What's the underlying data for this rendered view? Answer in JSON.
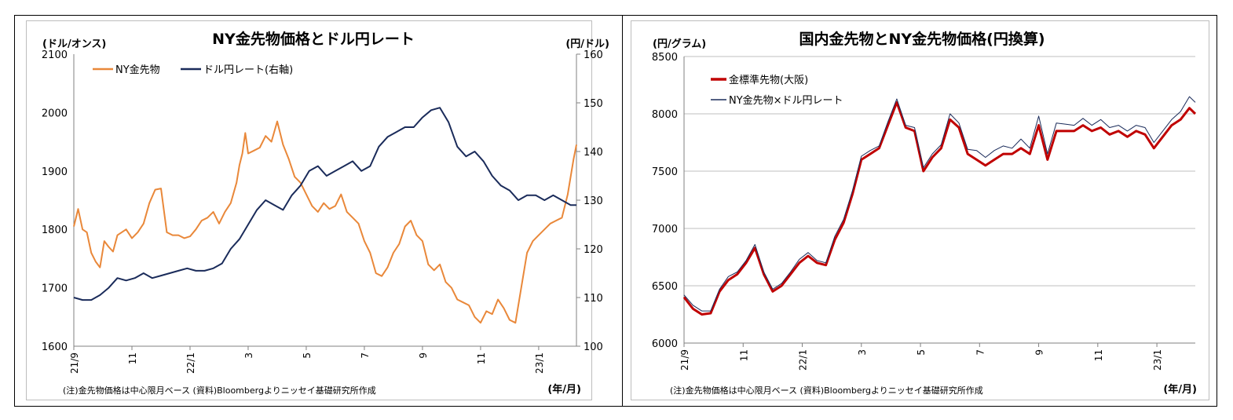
{
  "chart_data": [
    {
      "type": "line",
      "title": "NY金先物価格とドル円レート",
      "y_left_label": "(ドル/オンス)",
      "y_right_label": "(円/ドル)",
      "x_label": "(年/月)",
      "note": "(注)金先物価格は中心限月ベース (資料)Bloombergよりニッセイ基礎研究所作成",
      "x_ticks": [
        "21/9",
        "11",
        "22/1",
        "3",
        "5",
        "7",
        "9",
        "11",
        "23/1"
      ],
      "x_range": [
        0,
        17.3
      ],
      "ylim_left": [
        1600,
        2100
      ],
      "y_left_ticks": [
        "1600",
        "1700",
        "1800",
        "1900",
        "2000",
        "2100"
      ],
      "ylim_right": [
        100,
        160
      ],
      "y_right_ticks": [
        "100",
        "110",
        "120",
        "130",
        "140",
        "150",
        "160"
      ],
      "legend_position": "top-left",
      "series": [
        {
          "name": "NY金先物",
          "axis": "left",
          "color": "#E9883A",
          "x": [
            0,
            0.15,
            0.3,
            0.45,
            0.6,
            0.75,
            0.9,
            1.05,
            1.2,
            1.35,
            1.5,
            1.65,
            1.8,
            2.0,
            2.2,
            2.4,
            2.6,
            2.8,
            3.0,
            3.2,
            3.4,
            3.6,
            3.8,
            4.0,
            4.2,
            4.4,
            4.6,
            4.8,
            5.0,
            5.2,
            5.4,
            5.6,
            5.7,
            5.8,
            5.9,
            6.0,
            6.2,
            6.4,
            6.6,
            6.8,
            7.0,
            7.2,
            7.4,
            7.6,
            7.8,
            8.0,
            8.2,
            8.4,
            8.6,
            8.8,
            9.0,
            9.2,
            9.4,
            9.6,
            9.8,
            10.0,
            10.2,
            10.4,
            10.6,
            10.8,
            11.0,
            11.2,
            11.4,
            11.6,
            11.8,
            12.0,
            12.2,
            12.4,
            12.6,
            12.8,
            13.0,
            13.2,
            13.4,
            13.6,
            13.8,
            14.0,
            14.2,
            14.4,
            14.6,
            14.8,
            15.0,
            15.2,
            15.4,
            15.6,
            15.8,
            16.0,
            16.2,
            16.4,
            16.6,
            16.8,
            17.0,
            17.2,
            17.3
          ],
          "values": [
            1805,
            1835,
            1800,
            1795,
            1760,
            1745,
            1735,
            1780,
            1770,
            1762,
            1790,
            1795,
            1800,
            1785,
            1795,
            1810,
            1845,
            1868,
            1870,
            1795,
            1790,
            1790,
            1785,
            1788,
            1800,
            1815,
            1820,
            1830,
            1810,
            1830,
            1845,
            1880,
            1910,
            1930,
            1965,
            1930,
            1935,
            1940,
            1960,
            1950,
            1985,
            1945,
            1920,
            1890,
            1880,
            1860,
            1840,
            1830,
            1845,
            1835,
            1840,
            1860,
            1830,
            1820,
            1810,
            1780,
            1760,
            1725,
            1720,
            1735,
            1760,
            1775,
            1805,
            1815,
            1790,
            1780,
            1740,
            1730,
            1740,
            1710,
            1700,
            1680,
            1675,
            1670,
            1650,
            1640,
            1660,
            1655,
            1680,
            1665,
            1645,
            1640,
            1700,
            1760,
            1780,
            1790,
            1800,
            1810,
            1815,
            1820,
            1860,
            1920,
            1945
          ]
        },
        {
          "name": "ドル円レート(右軸)",
          "axis": "right",
          "color": "#1A2B5A",
          "x": [
            0,
            0.3,
            0.6,
            0.9,
            1.2,
            1.5,
            1.8,
            2.1,
            2.4,
            2.7,
            3.0,
            3.3,
            3.6,
            3.9,
            4.2,
            4.5,
            4.8,
            5.1,
            5.4,
            5.7,
            6.0,
            6.3,
            6.6,
            6.9,
            7.2,
            7.5,
            7.8,
            8.1,
            8.4,
            8.7,
            9.0,
            9.3,
            9.6,
            9.9,
            10.2,
            10.5,
            10.8,
            11.1,
            11.4,
            11.7,
            12.0,
            12.3,
            12.6,
            12.9,
            13.2,
            13.5,
            13.8,
            14.1,
            14.4,
            14.7,
            15.0,
            15.3,
            15.6,
            15.9,
            16.2,
            16.5,
            16.8,
            17.1,
            17.3
          ],
          "values": [
            110,
            109.5,
            109.5,
            110.5,
            112,
            114,
            113.5,
            114,
            115,
            114,
            114.5,
            115,
            115.5,
            116,
            115.5,
            115.5,
            116,
            117,
            120,
            122,
            125,
            128,
            130,
            129,
            128,
            131,
            133,
            136,
            137,
            135,
            136,
            137,
            138,
            136,
            137,
            141,
            143,
            144,
            145,
            145,
            147,
            148.5,
            149,
            146,
            141,
            139,
            140,
            138,
            135,
            133,
            132,
            130,
            131,
            131,
            130,
            131,
            130,
            129,
            129
          ]
        }
      ]
    },
    {
      "type": "line",
      "title": "国内金先物とNY金先物価格(円換算)",
      "y_left_label": "(円/グラム)",
      "x_label": "(年/月)",
      "note": "(注)金先物価格は中心限月ベース (資料)Bloombergよりニッセイ基礎研究所作成",
      "x_ticks": [
        "21/9",
        "11",
        "22/1",
        "3",
        "5",
        "7",
        "9",
        "11",
        "23/1"
      ],
      "x_range": [
        0,
        17.3
      ],
      "ylim_left": [
        6000,
        8500
      ],
      "y_left_ticks": [
        "6000",
        "6500",
        "7000",
        "7500",
        "8000",
        "8500"
      ],
      "legend_position": "top-left",
      "series": [
        {
          "name": "金標準先物(大阪)",
          "color": "#C00000",
          "x": [
            0,
            0.3,
            0.6,
            0.9,
            1.2,
            1.5,
            1.8,
            2.1,
            2.4,
            2.7,
            3.0,
            3.3,
            3.6,
            3.9,
            4.2,
            4.5,
            4.8,
            5.1,
            5.4,
            5.7,
            6.0,
            6.3,
            6.6,
            6.9,
            7.2,
            7.5,
            7.8,
            8.1,
            8.4,
            8.7,
            9.0,
            9.3,
            9.6,
            9.9,
            10.2,
            10.5,
            10.8,
            11.1,
            11.4,
            11.7,
            12.0,
            12.3,
            12.6,
            12.9,
            13.2,
            13.5,
            13.8,
            14.1,
            14.4,
            14.7,
            15.0,
            15.3,
            15.6,
            15.9,
            16.2,
            16.5,
            16.8,
            17.1,
            17.3
          ],
          "values": [
            6400,
            6300,
            6250,
            6260,
            6450,
            6550,
            6600,
            6700,
            6830,
            6600,
            6450,
            6500,
            6600,
            6700,
            6760,
            6700,
            6680,
            6900,
            7050,
            7300,
            7600,
            7650,
            7700,
            7900,
            8100,
            7880,
            7850,
            7500,
            7620,
            7700,
            7950,
            7880,
            7650,
            7600,
            7550,
            7600,
            7650,
            7650,
            7700,
            7650,
            7900,
            7600,
            7850,
            7850,
            7850,
            7900,
            7850,
            7880,
            7820,
            7850,
            7800,
            7850,
            7820,
            7700,
            7800,
            7900,
            7950,
            8050,
            8000
          ]
        },
        {
          "name": "NY金先物×ドル円レート",
          "color": "#1A2B5A",
          "x": [
            0,
            0.3,
            0.6,
            0.9,
            1.2,
            1.5,
            1.8,
            2.1,
            2.4,
            2.7,
            3.0,
            3.3,
            3.6,
            3.9,
            4.2,
            4.5,
            4.8,
            5.1,
            5.4,
            5.7,
            6.0,
            6.3,
            6.6,
            6.9,
            7.2,
            7.5,
            7.8,
            8.1,
            8.4,
            8.7,
            9.0,
            9.3,
            9.6,
            9.9,
            10.2,
            10.5,
            10.8,
            11.1,
            11.4,
            11.7,
            12.0,
            12.3,
            12.6,
            12.9,
            13.2,
            13.5,
            13.8,
            14.1,
            14.4,
            14.7,
            15.0,
            15.3,
            15.6,
            15.9,
            16.2,
            16.5,
            16.8,
            17.1,
            17.3
          ],
          "values": [
            6420,
            6330,
            6280,
            6280,
            6470,
            6580,
            6620,
            6720,
            6860,
            6620,
            6470,
            6520,
            6620,
            6730,
            6790,
            6720,
            6700,
            6930,
            7080,
            7330,
            7630,
            7680,
            7720,
            7930,
            8130,
            7900,
            7880,
            7530,
            7650,
            7730,
            8000,
            7920,
            7690,
            7680,
            7620,
            7680,
            7720,
            7700,
            7780,
            7700,
            7980,
            7650,
            7920,
            7910,
            7900,
            7960,
            7900,
            7950,
            7880,
            7900,
            7850,
            7900,
            7880,
            7750,
            7850,
            7950,
            8020,
            8150,
            8100
          ]
        }
      ]
    }
  ]
}
